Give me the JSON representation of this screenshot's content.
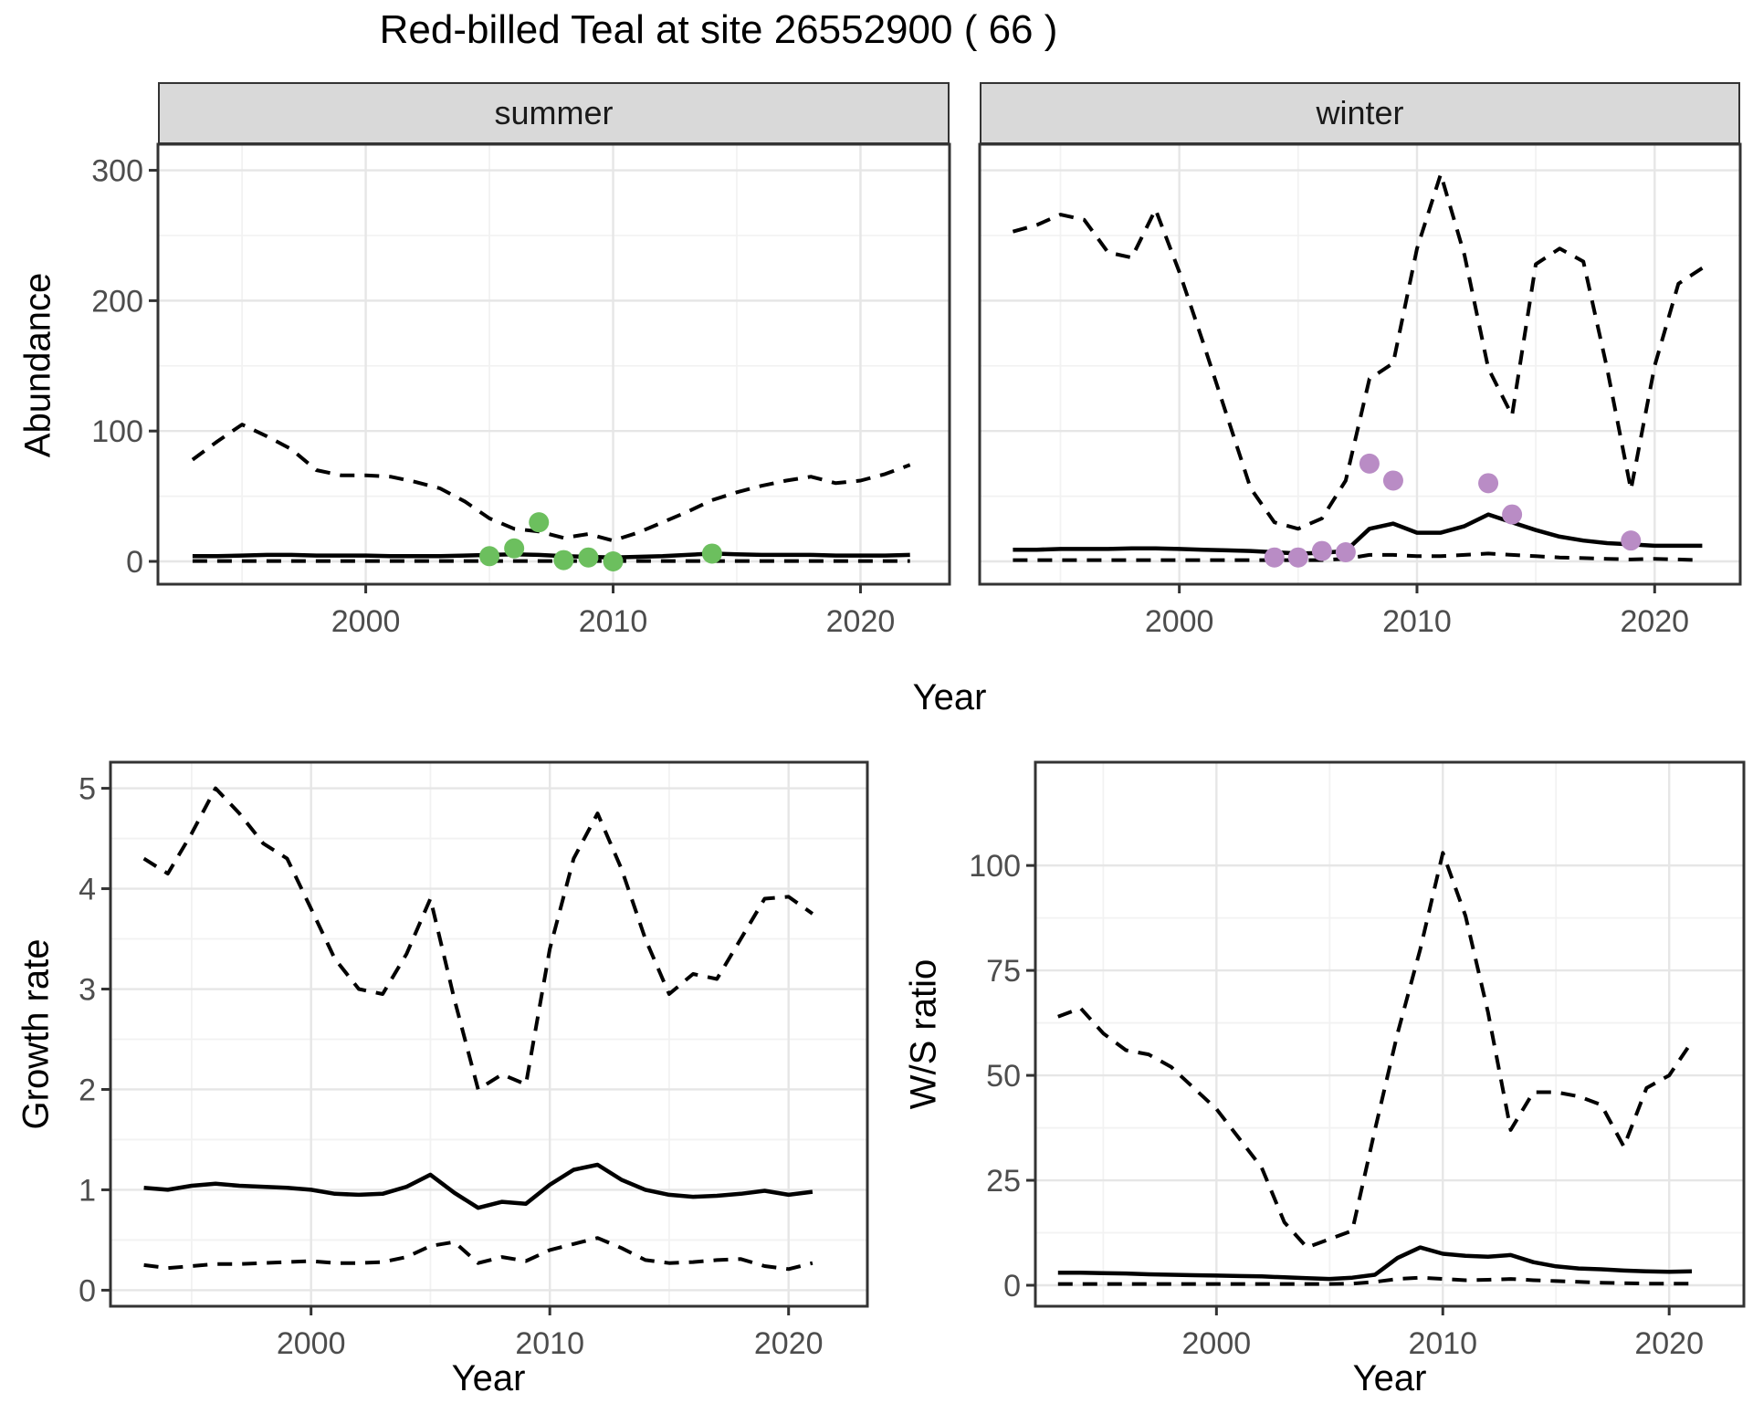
{
  "title": "Red-billed Teal at site 26552900 ( 66 )",
  "figure": {
    "facets": [
      {
        "label": "summer"
      },
      {
        "label": "winter"
      }
    ],
    "axes": {
      "abundance_label": "Abundance",
      "year_label": "Year",
      "growth_label": "Growth rate",
      "ws_label": "W/S ratio"
    }
  },
  "colors": {
    "summer_points": "#6cbf5e",
    "winter_points": "#b98cc5",
    "line": "#000000",
    "strip_bg": "#d9d9d9",
    "panel_border": "#333333",
    "grid_major": "#e6e6e6",
    "grid_minor": "#f2f2f2",
    "tick_mark": "#333333",
    "tick_text": "#4d4d4d"
  },
  "chart_data": [
    {
      "id": "summer_abundance",
      "type": "line",
      "facet": "summer",
      "xlabel": "Year",
      "ylabel": "Abundance",
      "x": [
        1993,
        1994,
        1995,
        1996,
        1997,
        1998,
        1999,
        2000,
        2001,
        2002,
        2003,
        2004,
        2005,
        2006,
        2007,
        2008,
        2009,
        2010,
        2011,
        2012,
        2013,
        2014,
        2015,
        2016,
        2017,
        2018,
        2019,
        2020,
        2021,
        2022
      ],
      "series": [
        {
          "name": "upper_95ci",
          "style": "dashed",
          "values": [
            78,
            92,
            105,
            96,
            86,
            70,
            66,
            66,
            65,
            61,
            56,
            46,
            33,
            25,
            23,
            18,
            21,
            16,
            22,
            30,
            38,
            47,
            53,
            58,
            62,
            65,
            60,
            62,
            67,
            74
          ]
        },
        {
          "name": "median",
          "style": "solid",
          "values": [
            4,
            4,
            4.5,
            5,
            5,
            4.5,
            4.5,
            4.5,
            4,
            4,
            4,
            4.5,
            5,
            5.5,
            5,
            4,
            3.5,
            3,
            3.5,
            4,
            5,
            6,
            5.5,
            5,
            5,
            5,
            4.5,
            4.5,
            4.5,
            5
          ]
        },
        {
          "name": "lower_95ci",
          "style": "dashed",
          "values": [
            0.3,
            0.3,
            0.3,
            0.3,
            0.3,
            0.3,
            0.3,
            0.3,
            0.3,
            0.3,
            0.3,
            0.3,
            0.3,
            0.3,
            0.3,
            0.3,
            0.3,
            0.3,
            0.3,
            0.3,
            0.3,
            0.3,
            0.3,
            0.3,
            0.3,
            0.3,
            0.3,
            0.3,
            0.3,
            0.3
          ]
        }
      ],
      "points": {
        "name": "observed-count",
        "color_key": "summer_points",
        "x": [
          2005,
          2006,
          2007,
          2008,
          2009,
          2010,
          2014
        ],
        "y": [
          4,
          10,
          30,
          1,
          3,
          0,
          6
        ]
      },
      "xlim": [
        1991.6,
        2023.6
      ],
      "ylim": [
        -17.5,
        320
      ],
      "x_ticks": [
        2000,
        2010,
        2020
      ],
      "x_minor": [
        1995,
        2005,
        2015
      ],
      "y_ticks": [
        0,
        100,
        200,
        300
      ],
      "y_minor": [
        50,
        150,
        250
      ],
      "grid": true,
      "legend": "none"
    },
    {
      "id": "winter_abundance",
      "type": "line",
      "facet": "winter",
      "xlabel": "Year",
      "ylabel": "Abundance",
      "x": [
        1993,
        1994,
        1995,
        1996,
        1997,
        1998,
        1999,
        2000,
        2001,
        2002,
        2003,
        2004,
        2005,
        2006,
        2007,
        2008,
        2009,
        2010,
        2011,
        2012,
        2013,
        2014,
        2015,
        2016,
        2017,
        2018,
        2019,
        2020,
        2021,
        2022
      ],
      "series": [
        {
          "name": "upper_95ci",
          "style": "dashed",
          "values": [
            253,
            258,
            266,
            262,
            237,
            233,
            270,
            222,
            168,
            112,
            56,
            30,
            25,
            33,
            62,
            140,
            152,
            240,
            297,
            235,
            148,
            112,
            228,
            240,
            230,
            148,
            55,
            150,
            213,
            225
          ]
        },
        {
          "name": "median",
          "style": "solid",
          "values": [
            9,
            9,
            9.5,
            9.5,
            9.5,
            10,
            10,
            9.5,
            9,
            8.5,
            8,
            7,
            6,
            6.5,
            8,
            25,
            29,
            22,
            22,
            27,
            36,
            30,
            24,
            19,
            16,
            14,
            13,
            12,
            12,
            12
          ]
        },
        {
          "name": "lower_95ci",
          "style": "dashed",
          "values": [
            1,
            1,
            1,
            1,
            1,
            1,
            1,
            1,
            1,
            1,
            1,
            1,
            1,
            1,
            2,
            5,
            5,
            4,
            4,
            5,
            6,
            5,
            4,
            3,
            2.5,
            2,
            1.5,
            2,
            1.5,
            1
          ]
        }
      ],
      "points": {
        "name": "observed-count",
        "color_key": "winter_points",
        "x": [
          2004,
          2005,
          2006,
          2007,
          2008,
          2009,
          2013,
          2014,
          2019
        ],
        "y": [
          3,
          3,
          8,
          7,
          75,
          62,
          60,
          36,
          16
        ]
      },
      "xlim": [
        1991.6,
        2023.6
      ],
      "ylim": [
        -17.5,
        320
      ],
      "x_ticks": [
        2000,
        2010,
        2020
      ],
      "x_minor": [
        1995,
        2005,
        2015
      ],
      "y_ticks": [
        0,
        100,
        200,
        300
      ],
      "y_minor": [
        50,
        150,
        250
      ],
      "grid": true,
      "legend": "none",
      "hide_y_ticks": true
    },
    {
      "id": "growth_rate",
      "type": "line",
      "xlabel": "Year",
      "ylabel": "Growth rate",
      "x": [
        1993,
        1994,
        1995,
        1996,
        1997,
        1998,
        1999,
        2000,
        2001,
        2002,
        2003,
        2004,
        2005,
        2006,
        2007,
        2008,
        2009,
        2010,
        2011,
        2012,
        2013,
        2014,
        2015,
        2016,
        2017,
        2018,
        2019,
        2020,
        2021
      ],
      "series": [
        {
          "name": "upper_95ci",
          "style": "dashed",
          "values": [
            4.3,
            4.15,
            4.55,
            5.0,
            4.75,
            4.45,
            4.3,
            3.8,
            3.3,
            3.0,
            2.95,
            3.35,
            3.9,
            2.9,
            2.0,
            2.15,
            2.05,
            3.4,
            4.3,
            4.75,
            4.2,
            3.5,
            2.95,
            3.15,
            3.1,
            3.5,
            3.9,
            3.92,
            3.75
          ]
        },
        {
          "name": "median",
          "style": "solid",
          "values": [
            1.02,
            1.0,
            1.04,
            1.06,
            1.04,
            1.03,
            1.02,
            1.0,
            0.96,
            0.95,
            0.96,
            1.03,
            1.15,
            0.97,
            0.82,
            0.88,
            0.86,
            1.05,
            1.2,
            1.25,
            1.1,
            1.0,
            0.95,
            0.93,
            0.94,
            0.96,
            0.99,
            0.95,
            0.98
          ]
        },
        {
          "name": "lower_95ci",
          "style": "dashed",
          "values": [
            0.25,
            0.22,
            0.24,
            0.26,
            0.26,
            0.27,
            0.28,
            0.29,
            0.27,
            0.27,
            0.28,
            0.33,
            0.44,
            0.48,
            0.27,
            0.33,
            0.29,
            0.4,
            0.46,
            0.52,
            0.42,
            0.3,
            0.27,
            0.28,
            0.3,
            0.31,
            0.24,
            0.21,
            0.27
          ]
        }
      ],
      "xlim": [
        1991.6,
        2023.3
      ],
      "ylim": [
        -0.16,
        5.26
      ],
      "x_ticks": [
        2000,
        2010,
        2020
      ],
      "x_minor": [
        1995,
        2005,
        2015
      ],
      "y_ticks": [
        0,
        1,
        2,
        3,
        4,
        5
      ],
      "y_minor": [
        0.5,
        1.5,
        2.5,
        3.5,
        4.5
      ],
      "grid": true,
      "legend": "none"
    },
    {
      "id": "ws_ratio",
      "type": "line",
      "xlabel": "Year",
      "ylabel": "W/S ratio",
      "x": [
        1993,
        1994,
        1995,
        1996,
        1997,
        1998,
        1999,
        2000,
        2001,
        2002,
        2003,
        2004,
        2005,
        2006,
        2007,
        2008,
        2009,
        2010,
        2011,
        2012,
        2013,
        2014,
        2015,
        2016,
        2017,
        2018,
        2019,
        2020,
        2021
      ],
      "series": [
        {
          "name": "upper_95ci",
          "style": "dashed",
          "values": [
            64,
            66,
            60,
            56,
            55,
            52,
            47,
            42,
            35,
            28,
            15,
            9,
            11,
            13,
            37,
            60,
            80,
            103,
            88,
            65,
            37,
            46,
            46,
            45,
            43,
            33,
            47,
            50,
            58
          ]
        },
        {
          "name": "median",
          "style": "solid",
          "values": [
            3,
            3,
            2.9,
            2.8,
            2.6,
            2.5,
            2.4,
            2.3,
            2.2,
            2.1,
            1.9,
            1.7,
            1.5,
            1.8,
            2.5,
            6.5,
            9,
            7.5,
            7,
            6.8,
            7.2,
            5.5,
            4.5,
            4,
            3.8,
            3.5,
            3.3,
            3.2,
            3.3
          ]
        },
        {
          "name": "lower_95ci",
          "style": "dashed",
          "values": [
            0.3,
            0.3,
            0.3,
            0.3,
            0.3,
            0.3,
            0.3,
            0.3,
            0.3,
            0.3,
            0.3,
            0.3,
            0.3,
            0.4,
            0.8,
            1.5,
            1.8,
            1.5,
            1.2,
            1.3,
            1.5,
            1.2,
            1.0,
            0.8,
            0.6,
            0.5,
            0.4,
            0.4,
            0.4
          ]
        }
      ],
      "xlim": [
        1992.0,
        2023.3
      ],
      "ylim": [
        -5,
        124.6
      ],
      "x_ticks": [
        2000,
        2010,
        2020
      ],
      "x_minor": [
        1995,
        2005,
        2015
      ],
      "y_ticks": [
        0,
        25,
        50,
        75,
        100
      ],
      "y_minor": [
        12.5,
        37.5,
        62.5,
        87.5
      ],
      "grid": true,
      "legend": "none"
    }
  ]
}
